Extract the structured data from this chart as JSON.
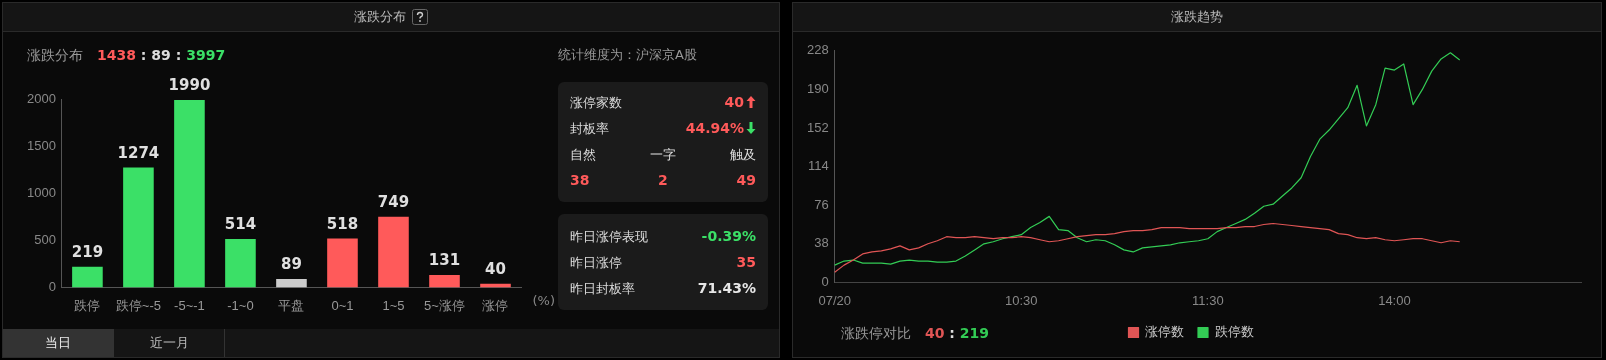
{
  "chart_data": [
    {
      "type": "bar",
      "title": "涨跌分布",
      "subtitle": "涨跌分布 1438 : 89 : 3997",
      "xlabel": "(%)",
      "categories": [
        "跌停",
        "跌停~-5",
        "-5~-1",
        "-1~0",
        "平盘",
        "0~1",
        "1~5",
        "5~涨停",
        "涨停"
      ],
      "values": [
        219,
        1274,
        1990,
        514,
        89,
        518,
        749,
        131,
        40
      ],
      "colors": [
        "#3be067",
        "#3be067",
        "#3be067",
        "#3be067",
        "#cccccc",
        "#ff5a5a",
        "#ff5a5a",
        "#ff5a5a",
        "#ff5a5a"
      ],
      "ylim": [
        0,
        2000
      ],
      "yticks": [
        0,
        500,
        1000,
        1500,
        2000
      ],
      "data_labels": true,
      "annotations": [
        "当日",
        "近一月"
      ]
    },
    {
      "type": "other",
      "title": "统计维度为：沪深京A股",
      "annotations": [
        "涨停家数",
        "40",
        "封板率",
        "44.94%",
        "自然",
        "一字",
        "触及",
        "38",
        "2",
        "49",
        "昨日涨停表现",
        "-0.39%",
        "昨日涨停",
        "35",
        "昨日封板率",
        "71.43%"
      ]
    },
    {
      "type": "line",
      "title": "涨跌趋势",
      "legend": "bottom",
      "marker": "none",
      "annotations": [
        "涨跌停对比 40 : 219"
      ],
      "categories": [
        "07/20",
        null,
        null,
        null,
        null,
        null,
        null,
        null,
        null,
        null,
        null,
        null,
        null,
        null,
        null,
        null,
        null,
        null,
        null,
        null,
        "10:30",
        null,
        null,
        null,
        null,
        null,
        null,
        null,
        null,
        null,
        null,
        null,
        null,
        null,
        null,
        null,
        null,
        null,
        null,
        null,
        "11:30",
        null,
        null,
        null,
        null,
        null,
        null,
        null,
        null,
        null,
        null,
        null,
        null,
        null,
        null,
        null,
        null,
        null,
        null,
        null,
        "14:00",
        null,
        null,
        null,
        null,
        null,
        null,
        null,
        null,
        null,
        null,
        null,
        null,
        null,
        null,
        null,
        null,
        null,
        null,
        null,
        null
      ],
      "ylim": [
        0,
        228
      ],
      "yticks": [
        0,
        38,
        76,
        114,
        152,
        190,
        228
      ],
      "series": [
        {
          "name": "涨停数",
          "color": "#e05555",
          "values": [
            10,
            17,
            22,
            28,
            30,
            31,
            33,
            36,
            32,
            34,
            38,
            41,
            45,
            44,
            44,
            45,
            44,
            43,
            44,
            44,
            45,
            44,
            42,
            40,
            41,
            43,
            45,
            46,
            47,
            47,
            48,
            50,
            51,
            51,
            52,
            54,
            54,
            54,
            53,
            53,
            53,
            53,
            54,
            54,
            55,
            55,
            57,
            58,
            57,
            56,
            55,
            54,
            53,
            52,
            48,
            47,
            44,
            43,
            44,
            42,
            41,
            42,
            43,
            43,
            41,
            39,
            41,
            40,
            null,
            null,
            null,
            null,
            null,
            null,
            null,
            null,
            null,
            null,
            null,
            null,
            null
          ]
        },
        {
          "name": "跌停数",
          "color": "#33cc55",
          "values": [
            17,
            21,
            22,
            19,
            19,
            19,
            18,
            21,
            22,
            21,
            21,
            20,
            20,
            21,
            26,
            32,
            38,
            40,
            43,
            45,
            47,
            54,
            59,
            65,
            52,
            51,
            44,
            40,
            42,
            41,
            37,
            32,
            30,
            34,
            35,
            36,
            37,
            39,
            40,
            41,
            43,
            50,
            54,
            58,
            62,
            68,
            75,
            77,
            85,
            93,
            103,
            124,
            141,
            150,
            161,
            172,
            194,
            154,
            175,
            211,
            209,
            215,
            175,
            190,
            208,
            220,
            226,
            219,
            null,
            null,
            null,
            null,
            null,
            null,
            null,
            null,
            null,
            null,
            null,
            null,
            null
          ]
        }
      ]
    }
  ]
}
